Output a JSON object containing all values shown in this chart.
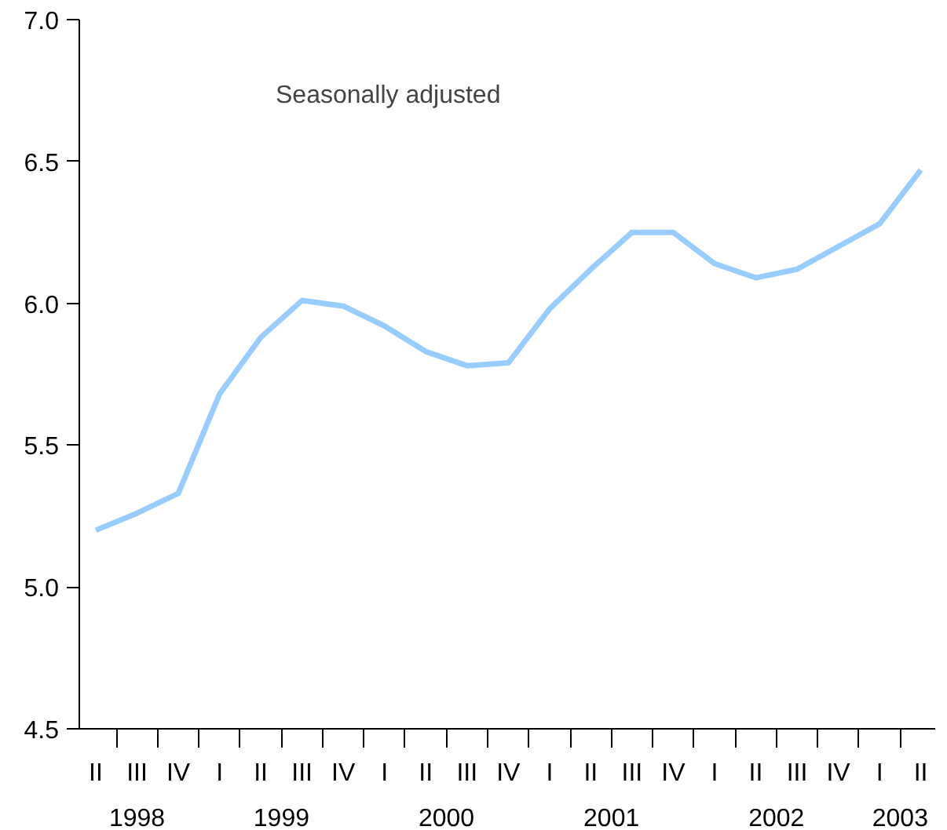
{
  "chart_data": {
    "type": "line",
    "categories": [
      "II",
      "III",
      "IV",
      "I",
      "II",
      "III",
      "IV",
      "I",
      "II",
      "III",
      "IV",
      "I",
      "II",
      "III",
      "IV",
      "I",
      "II",
      "III",
      "IV",
      "I",
      "II"
    ],
    "series": [
      {
        "color": "#99ccff",
        "values": [
          5.2,
          5.26,
          5.33,
          5.68,
          5.88,
          6.01,
          5.99,
          5.92,
          5.83,
          5.78,
          5.79,
          5.98,
          6.12,
          6.25,
          6.25,
          6.14,
          6.09,
          6.12,
          6.2,
          6.28,
          6.47
        ]
      }
    ],
    "ylim": [
      4.5,
      7.0
    ],
    "yticks": [
      {
        "value": 4.5,
        "label": "4.5"
      },
      {
        "value": 5.0,
        "label": "5.0"
      },
      {
        "value": 5.5,
        "label": "5.5"
      },
      {
        "value": 6.0,
        "label": "6.0"
      },
      {
        "value": 6.5,
        "label": "6.5"
      },
      {
        "value": 7.0,
        "label": "7.0"
      }
    ],
    "annotations": [
      "Seasonally adjusted",
      "1998",
      "1999",
      "2000",
      "2001",
      "2002",
      "2003"
    ],
    "grid": false
  }
}
